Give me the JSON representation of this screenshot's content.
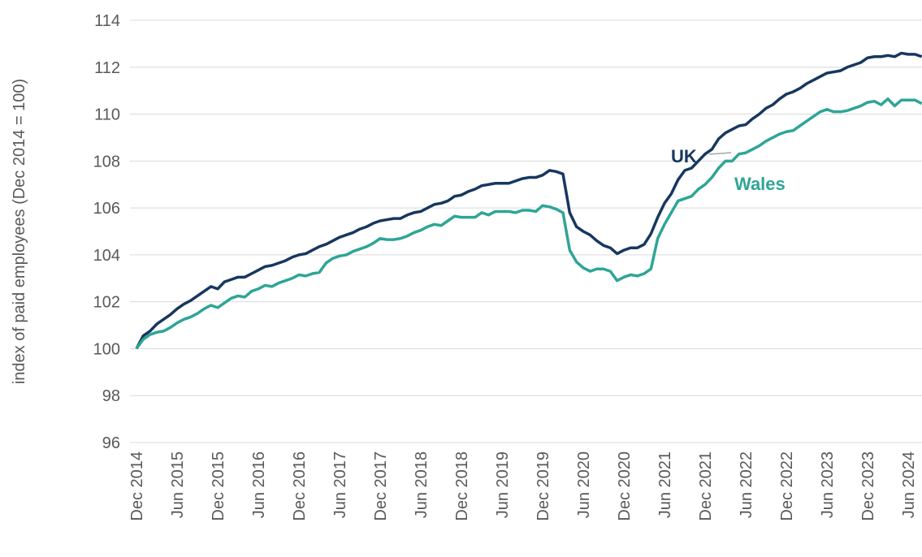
{
  "chart_data": {
    "type": "line",
    "y_label": "index of paid employees (Dec 2014 = 100)",
    "annotations": [
      "UK",
      "Wales"
    ],
    "categories": [
      "Dec 2014",
      null,
      null,
      null,
      null,
      null,
      "Jun 2015",
      null,
      null,
      null,
      null,
      null,
      "Dec 2015",
      null,
      null,
      null,
      null,
      null,
      "Jun 2016",
      null,
      null,
      null,
      null,
      null,
      "Dec 2016",
      null,
      null,
      null,
      null,
      null,
      "Jun 2017",
      null,
      null,
      null,
      null,
      null,
      "Dec 2017",
      null,
      null,
      null,
      null,
      null,
      "Jun 2018",
      null,
      null,
      null,
      null,
      null,
      "Dec 2018",
      null,
      null,
      null,
      null,
      null,
      "Jun 2019",
      null,
      null,
      null,
      null,
      null,
      "Dec 2019",
      null,
      null,
      null,
      null,
      null,
      "Jun 2020",
      null,
      null,
      null,
      null,
      null,
      "Dec 2020",
      null,
      null,
      null,
      null,
      null,
      "Jun 2021",
      null,
      null,
      null,
      null,
      null,
      "Dec 2021",
      null,
      null,
      null,
      null,
      null,
      "Jun 2022",
      null,
      null,
      null,
      null,
      null,
      "Dec 2022",
      null,
      null,
      null,
      null,
      null,
      "Jun 2023",
      null,
      null,
      null,
      null,
      null,
      "Dec 2023",
      null,
      null,
      null,
      null,
      null,
      "Jun 2024",
      null,
      null
    ],
    "series": [
      {
        "name": "UK",
        "color": "#17375e",
        "values": [
          100.0,
          100.55,
          100.75,
          101.05,
          101.25,
          101.45,
          101.7,
          101.9,
          102.05,
          102.25,
          102.45,
          102.65,
          102.55,
          102.85,
          102.95,
          103.05,
          103.05,
          103.2,
          103.35,
          103.5,
          103.55,
          103.65,
          103.75,
          103.9,
          104.0,
          104.05,
          104.2,
          104.35,
          104.45,
          104.6,
          104.75,
          104.85,
          104.95,
          105.1,
          105.2,
          105.35,
          105.45,
          105.5,
          105.55,
          105.55,
          105.7,
          105.8,
          105.85,
          106.0,
          106.15,
          106.2,
          106.3,
          106.5,
          106.55,
          106.7,
          106.8,
          106.95,
          107.0,
          107.05,
          107.05,
          107.05,
          107.15,
          107.25,
          107.3,
          107.3,
          107.4,
          107.6,
          107.55,
          107.45,
          105.8,
          105.2,
          105.0,
          104.85,
          104.6,
          104.4,
          104.3,
          104.05,
          104.2,
          104.3,
          104.3,
          104.45,
          104.9,
          105.6,
          106.2,
          106.6,
          107.2,
          107.6,
          107.7,
          108.0,
          108.3,
          108.5,
          108.95,
          109.2,
          109.35,
          109.5,
          109.55,
          109.8,
          110.0,
          110.25,
          110.4,
          110.65,
          110.85,
          110.95,
          111.1,
          111.3,
          111.45,
          111.6,
          111.75,
          111.8,
          111.85,
          112.0,
          112.1,
          112.2,
          112.4,
          112.45,
          112.45,
          112.5,
          112.45,
          112.6,
          112.55,
          112.55,
          112.45
        ]
      },
      {
        "name": "Wales",
        "color": "#2ea596",
        "values": [
          100.0,
          100.4,
          100.6,
          100.7,
          100.75,
          100.9,
          101.1,
          101.25,
          101.35,
          101.5,
          101.7,
          101.85,
          101.75,
          101.95,
          102.15,
          102.25,
          102.2,
          102.45,
          102.55,
          102.7,
          102.65,
          102.8,
          102.9,
          103.0,
          103.15,
          103.1,
          103.2,
          103.25,
          103.65,
          103.85,
          103.95,
          104.0,
          104.15,
          104.25,
          104.35,
          104.5,
          104.7,
          104.65,
          104.65,
          104.7,
          104.8,
          104.95,
          105.05,
          105.2,
          105.3,
          105.25,
          105.45,
          105.65,
          105.6,
          105.6,
          105.6,
          105.8,
          105.7,
          105.85,
          105.85,
          105.85,
          105.8,
          105.9,
          105.9,
          105.85,
          106.1,
          106.05,
          105.95,
          105.8,
          104.2,
          103.7,
          103.45,
          103.3,
          103.4,
          103.4,
          103.3,
          102.9,
          103.05,
          103.15,
          103.1,
          103.2,
          103.4,
          104.7,
          105.3,
          105.8,
          106.3,
          106.4,
          106.5,
          106.8,
          107.0,
          107.3,
          107.7,
          108.0,
          108.0,
          108.3,
          108.35,
          108.5,
          108.65,
          108.85,
          109.0,
          109.15,
          109.25,
          109.3,
          109.5,
          109.7,
          109.9,
          110.1,
          110.2,
          110.1,
          110.1,
          110.15,
          110.25,
          110.35,
          110.5,
          110.55,
          110.4,
          110.65,
          110.35,
          110.6,
          110.6,
          110.6,
          110.45
        ]
      }
    ],
    "ylim": [
      96,
      114
    ],
    "yticks": [
      96,
      98,
      100,
      102,
      104,
      106,
      108,
      110,
      112,
      114
    ],
    "grid": true
  }
}
